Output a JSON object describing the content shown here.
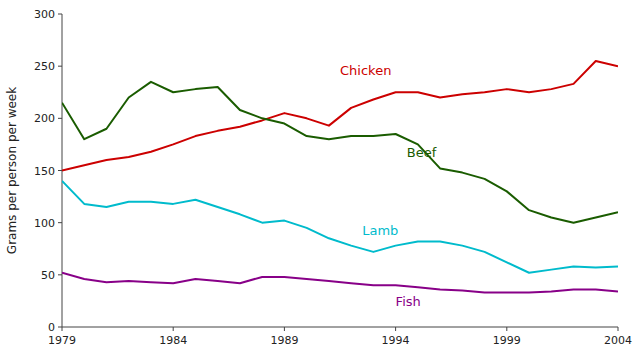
{
  "chart_data": {
    "type": "line",
    "y_label": "Grams per person per week",
    "x": [
      1979,
      1980,
      1981,
      1982,
      1983,
      1984,
      1985,
      1986,
      1987,
      1988,
      1989,
      1990,
      1991,
      1992,
      1993,
      1994,
      1995,
      1996,
      1997,
      1998,
      1999,
      2000,
      2001,
      2002,
      2003,
      2004
    ],
    "series": [
      {
        "color": "#cc0000",
        "values": [
          150,
          155,
          160,
          163,
          168,
          175,
          183,
          188,
          192,
          198,
          205,
          200,
          193,
          210,
          218,
          225,
          225,
          220,
          223,
          225,
          228,
          225,
          228,
          233,
          255,
          250
        ]
      },
      {
        "color": "#1a5c00",
        "values": [
          215,
          180,
          190,
          220,
          235,
          225,
          228,
          230,
          208,
          200,
          195,
          183,
          180,
          183,
          183,
          185,
          175,
          152,
          148,
          142,
          130,
          112,
          105,
          100,
          105,
          110
        ]
      },
      {
        "color": "#00bbcc",
        "values": [
          140,
          118,
          115,
          120,
          120,
          118,
          122,
          115,
          108,
          100,
          102,
          95,
          85,
          78,
          72,
          78,
          82,
          82,
          78,
          72,
          62,
          52,
          55,
          58,
          57,
          58
        ]
      },
      {
        "color": "#880088",
        "values": [
          52,
          46,
          43,
          44,
          43,
          42,
          46,
          44,
          42,
          48,
          48,
          46,
          44,
          42,
          40,
          40,
          38,
          36,
          35,
          33,
          33,
          33,
          34,
          36,
          36,
          34
        ]
      }
    ],
    "annotations": [
      {
        "text": "Chicken",
        "x": 1991.5,
        "y": 242,
        "color": "#cc0000"
      },
      {
        "text": "Beef",
        "x": 1994.5,
        "y": 163,
        "color": "#1a5c00"
      },
      {
        "text": "Lamb",
        "x": 1992.5,
        "y": 88,
        "color": "#00bbcc"
      },
      {
        "text": "Fish",
        "x": 1994.0,
        "y": 20,
        "color": "#880088"
      }
    ],
    "xlim": [
      1979,
      2004
    ],
    "ylim": [
      0,
      300
    ],
    "xticks": [
      1979,
      1984,
      1989,
      1994,
      1999,
      2004
    ],
    "yticks": [
      0,
      50,
      100,
      150,
      200,
      250,
      300
    ],
    "grid": false
  }
}
